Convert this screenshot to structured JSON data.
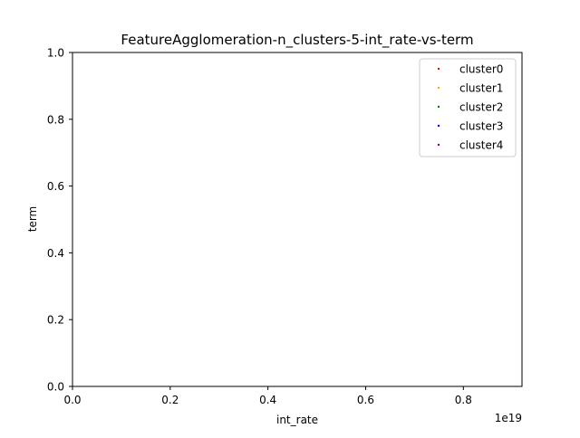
{
  "chart_data": {
    "type": "scatter",
    "title": "FeatureAgglomeration-n_clusters-5-int_rate-vs-term",
    "xlabel": "int_rate",
    "ylabel": "term",
    "x_offset_text": "1e19",
    "xlim": [
      0.0,
      0.92
    ],
    "ylim": [
      0.0,
      1.0
    ],
    "x_ticks": [
      0.0,
      0.2,
      0.4,
      0.6,
      0.8
    ],
    "x_tick_labels": [
      "0.0",
      "0.2",
      "0.4",
      "0.6",
      "0.8"
    ],
    "y_ticks": [
      0.0,
      0.2,
      0.4,
      0.6,
      0.8,
      1.0
    ],
    "y_tick_labels": [
      "0.0",
      "0.2",
      "0.4",
      "0.6",
      "0.8",
      "1.0"
    ],
    "grid": false,
    "legend_position": "upper right",
    "series": [
      {
        "name": "cluster0",
        "color": "#ff0000",
        "points": []
      },
      {
        "name": "cluster1",
        "color": "#ffa500",
        "points": []
      },
      {
        "name": "cluster2",
        "color": "#008000",
        "points": []
      },
      {
        "name": "cluster3",
        "color": "#0000ff",
        "points": []
      },
      {
        "name": "cluster4",
        "color": "#800080",
        "points": []
      }
    ]
  }
}
